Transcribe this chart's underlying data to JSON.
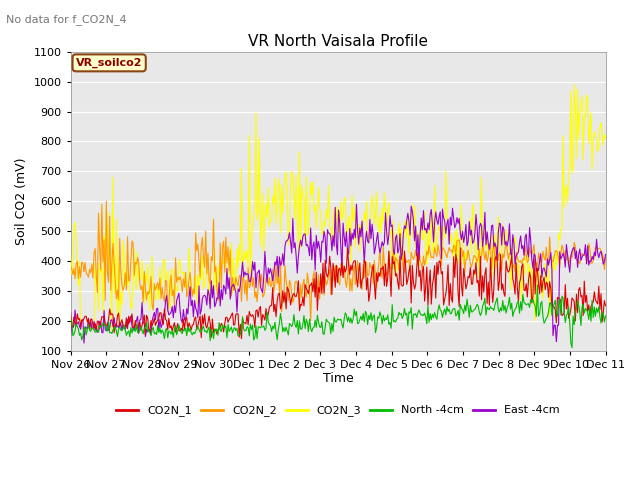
{
  "title": "VR North Vaisala Profile",
  "subtitle": "No data for f_CO2N_4",
  "ylabel": "Soil CO2 (mV)",
  "xlabel": "Time",
  "inner_label": "VR_soilco2",
  "ylim": [
    100,
    1100
  ],
  "yticks": [
    100,
    200,
    300,
    400,
    500,
    600,
    700,
    800,
    900,
    1000,
    1100
  ],
  "series_colors": {
    "CO2N_1": "#dd0000",
    "CO2N_2": "#ff9900",
    "CO2N_3": "#ffff00",
    "North_4cm": "#00bb00",
    "East_4cm": "#9900cc"
  },
  "legend_labels": [
    "CO2N_1",
    "CO2N_2",
    "CO2N_3",
    "North -4cm",
    "East -4cm"
  ],
  "fig_bg_color": "#ffffff",
  "plot_bg_color": "#e8e8e8",
  "grid_color": "#ffffff",
  "tick_labels": [
    "Nov 26",
    "Nov 27",
    "Nov 28",
    "Nov 29",
    "Nov 30",
    "Dec 1",
    "Dec 2",
    "Dec 3",
    "Dec 4",
    "Dec 5",
    "Dec 6",
    "Dec 7",
    "Dec 8",
    "Dec 9",
    "Dec 10",
    "Dec 11"
  ]
}
